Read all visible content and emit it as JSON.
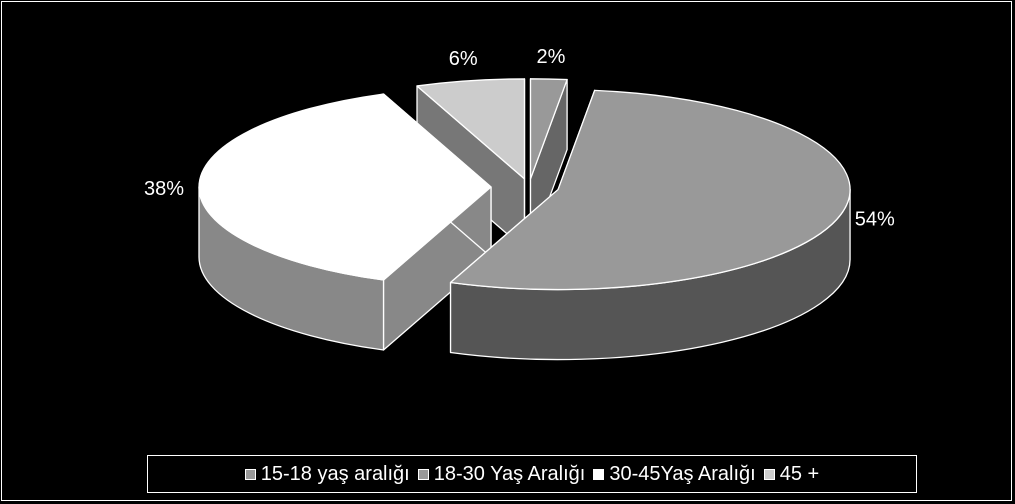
{
  "chart_data": {
    "type": "pie",
    "variant": "3d-exploded",
    "title": "",
    "categories": [
      "15-18 yaş aralığı",
      "18-30 Yaş Aralığı",
      "30-45Yaş Aralığı",
      "45 +"
    ],
    "values": [
      2,
      54,
      38,
      6
    ],
    "data_labels": [
      "2%",
      "54%",
      "38%",
      "6%"
    ],
    "colors": [
      "#999999",
      "#999999",
      "#ffffff",
      "#cccccc"
    ],
    "side_colors": [
      "#666666",
      "#555555",
      "#888888",
      "#777777"
    ],
    "legend_position": "bottom",
    "background": "#000000"
  }
}
